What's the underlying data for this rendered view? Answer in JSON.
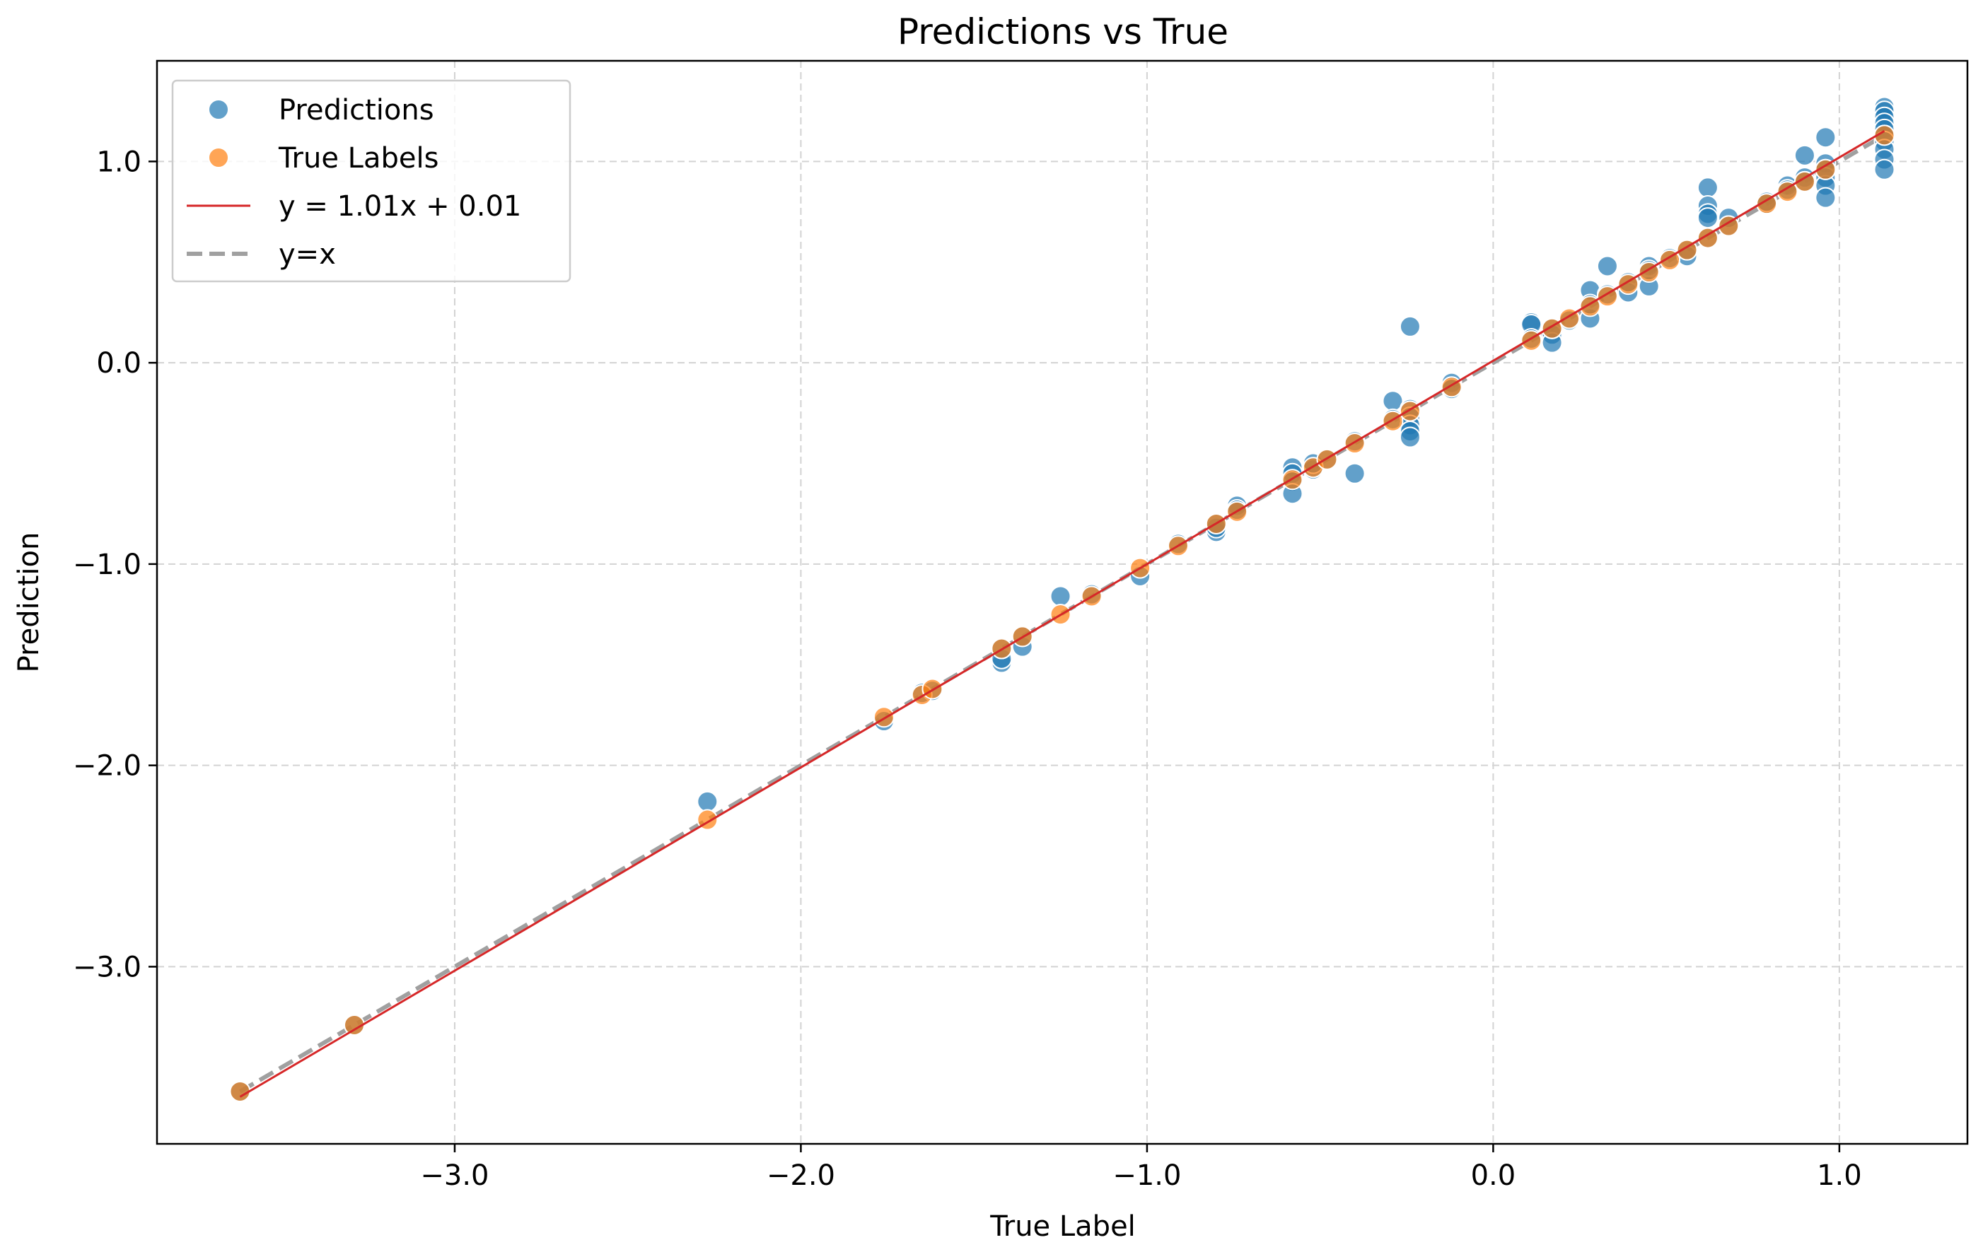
{
  "chart_data": {
    "type": "scatter",
    "title": "Predictions vs True",
    "xlabel": "True Label",
    "ylabel": "Prediction",
    "xlim": [
      -3.86,
      1.37
    ],
    "ylim": [
      -3.88,
      1.5
    ],
    "grid": true,
    "legend_position": "top-left",
    "xticks": [
      -3.0,
      -2.0,
      -1.0,
      0.0,
      1.0
    ],
    "yticks": [
      -3.0,
      -2.0,
      -1.0,
      0.0,
      1.0
    ],
    "xtick_labels": [
      "−3.0",
      "−2.0",
      "−1.0",
      "0.0",
      "1.0"
    ],
    "ytick_labels": [
      "−3.0",
      "−2.0",
      "−1.0",
      "0.0",
      "1.0"
    ],
    "legend": [
      {
        "label": "Predictions",
        "kind": "marker",
        "color": "#1f77b4"
      },
      {
        "label": "True Labels",
        "kind": "marker",
        "color": "#ff7f0e"
      },
      {
        "label": "y = 1.01x + 0.01",
        "kind": "line",
        "color": "#d62728"
      },
      {
        "label": "y=x",
        "kind": "dashed",
        "color": "#a0a0a0"
      }
    ],
    "series": [
      {
        "name": "Predictions",
        "color": "#1f77b4",
        "points": [
          [
            -3.62,
            -3.62
          ],
          [
            -3.29,
            -3.29
          ],
          [
            -2.27,
            -2.18
          ],
          [
            -1.76,
            -1.78
          ],
          [
            -1.65,
            -1.64
          ],
          [
            -1.62,
            -1.63
          ],
          [
            -1.42,
            -1.49
          ],
          [
            -1.42,
            -1.47
          ],
          [
            -1.42,
            -1.42
          ],
          [
            -1.36,
            -1.41
          ],
          [
            -1.36,
            -1.36
          ],
          [
            -1.25,
            -1.16
          ],
          [
            -1.16,
            -1.15
          ],
          [
            -1.02,
            -1.06
          ],
          [
            -0.91,
            -0.9
          ],
          [
            -0.8,
            -0.84
          ],
          [
            -0.8,
            -0.82
          ],
          [
            -0.8,
            -0.8
          ],
          [
            -0.74,
            -0.71
          ],
          [
            -0.74,
            -0.73
          ],
          [
            -0.58,
            -0.52
          ],
          [
            -0.58,
            -0.55
          ],
          [
            -0.58,
            -0.59
          ],
          [
            -0.58,
            -0.65
          ],
          [
            -0.52,
            -0.53
          ],
          [
            -0.52,
            -0.5
          ],
          [
            -0.48,
            -0.48
          ],
          [
            -0.4,
            -0.55
          ],
          [
            -0.4,
            -0.39
          ],
          [
            -0.29,
            -0.19
          ],
          [
            -0.29,
            -0.28
          ],
          [
            -0.24,
            0.18
          ],
          [
            -0.24,
            -0.23
          ],
          [
            -0.24,
            -0.27
          ],
          [
            -0.24,
            -0.31
          ],
          [
            -0.24,
            -0.34
          ],
          [
            -0.24,
            -0.37
          ],
          [
            -0.12,
            -0.1
          ],
          [
            -0.12,
            -0.13
          ],
          [
            0.11,
            0.2
          ],
          [
            0.11,
            0.19
          ],
          [
            0.11,
            0.12
          ],
          [
            0.17,
            0.14
          ],
          [
            0.17,
            0.1
          ],
          [
            0.17,
            0.17
          ],
          [
            0.22,
            0.21
          ],
          [
            0.28,
            0.36
          ],
          [
            0.28,
            0.22
          ],
          [
            0.28,
            0.29
          ],
          [
            0.33,
            0.48
          ],
          [
            0.33,
            0.34
          ],
          [
            0.39,
            0.35
          ],
          [
            0.39,
            0.4
          ],
          [
            0.45,
            0.48
          ],
          [
            0.45,
            0.38
          ],
          [
            0.45,
            0.46
          ],
          [
            0.51,
            0.52
          ],
          [
            0.56,
            0.53
          ],
          [
            0.56,
            0.56
          ],
          [
            0.62,
            0.87
          ],
          [
            0.62,
            0.78
          ],
          [
            0.62,
            0.74
          ],
          [
            0.62,
            0.72
          ],
          [
            0.62,
            0.62
          ],
          [
            0.68,
            0.72
          ],
          [
            0.68,
            0.68
          ],
          [
            0.79,
            0.79
          ],
          [
            0.79,
            0.8
          ],
          [
            0.85,
            0.88
          ],
          [
            0.85,
            0.86
          ],
          [
            0.9,
            1.03
          ],
          [
            0.9,
            0.92
          ],
          [
            0.9,
            0.9
          ],
          [
            0.96,
            1.12
          ],
          [
            0.96,
            0.99
          ],
          [
            0.96,
            0.92
          ],
          [
            0.96,
            0.88
          ],
          [
            0.96,
            0.82
          ],
          [
            0.96,
            0.96
          ],
          [
            1.13,
            1.27
          ],
          [
            1.13,
            1.25
          ],
          [
            1.13,
            1.22
          ],
          [
            1.13,
            1.19
          ],
          [
            1.13,
            1.16
          ],
          [
            1.13,
            1.13
          ],
          [
            1.13,
            1.1
          ],
          [
            1.13,
            1.06
          ],
          [
            1.13,
            1.01
          ],
          [
            1.13,
            0.96
          ]
        ]
      },
      {
        "name": "True Labels",
        "color": "#ff7f0e",
        "points": [
          [
            -3.62,
            -3.62
          ],
          [
            -3.29,
            -3.29
          ],
          [
            -2.27,
            -2.27
          ],
          [
            -1.76,
            -1.76
          ],
          [
            -1.65,
            -1.65
          ],
          [
            -1.62,
            -1.62
          ],
          [
            -1.42,
            -1.42
          ],
          [
            -1.36,
            -1.36
          ],
          [
            -1.25,
            -1.25
          ],
          [
            -1.16,
            -1.16
          ],
          [
            -1.02,
            -1.02
          ],
          [
            -0.91,
            -0.91
          ],
          [
            -0.8,
            -0.8
          ],
          [
            -0.74,
            -0.74
          ],
          [
            -0.58,
            -0.58
          ],
          [
            -0.52,
            -0.52
          ],
          [
            -0.48,
            -0.48
          ],
          [
            -0.4,
            -0.4
          ],
          [
            -0.29,
            -0.29
          ],
          [
            -0.24,
            -0.24
          ],
          [
            -0.12,
            -0.12
          ],
          [
            0.11,
            0.11
          ],
          [
            0.17,
            0.17
          ],
          [
            0.22,
            0.22
          ],
          [
            0.28,
            0.28
          ],
          [
            0.33,
            0.33
          ],
          [
            0.39,
            0.39
          ],
          [
            0.45,
            0.45
          ],
          [
            0.51,
            0.51
          ],
          [
            0.56,
            0.56
          ],
          [
            0.62,
            0.62
          ],
          [
            0.68,
            0.68
          ],
          [
            0.79,
            0.79
          ],
          [
            0.85,
            0.85
          ],
          [
            0.9,
            0.9
          ],
          [
            0.96,
            0.96
          ],
          [
            1.13,
            1.13
          ]
        ]
      }
    ],
    "fit_line": {
      "name": "y = 1.01x + 0.01",
      "slope": 1.01,
      "intercept": 0.01,
      "x_range": [
        -3.62,
        1.13
      ],
      "color": "#d62728"
    },
    "identity_line": {
      "name": "y=x",
      "x_range": [
        -3.62,
        1.13
      ],
      "color": "#a0a0a0"
    }
  }
}
